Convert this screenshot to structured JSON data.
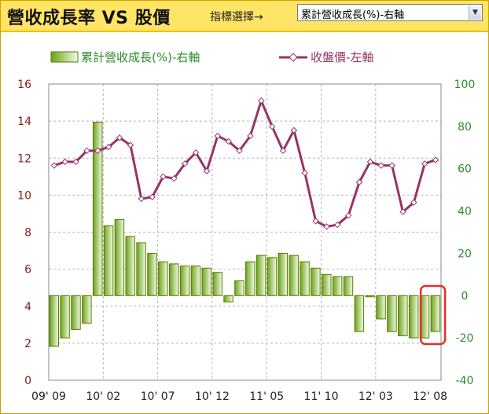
{
  "header": {
    "title": "營收成長率 VS 股價",
    "selector_label": "指標選擇→",
    "selected_option": "累計營收成長(%)-右軸"
  },
  "colors": {
    "header_bg": "#ffe566",
    "bar_stroke": "#5a7a00",
    "bar_fill_dark": "#6aa31a",
    "line": "#993366",
    "left_axis": "#8b1a1a",
    "right_axis": "#2e8b2e",
    "highlight": "#e03030"
  },
  "icons": {
    "dropdown": "chevron-down-icon"
  },
  "chart_data": {
    "type": "bar+line",
    "legend": [
      {
        "name": "累計營收成長(%)-右軸",
        "kind": "bar"
      },
      {
        "name": "收盤價-左軸",
        "kind": "line"
      }
    ],
    "x_tick_labels": [
      "09' 09",
      "10' 02",
      "10' 07",
      "10' 12",
      "11' 05",
      "11' 10",
      "12' 03",
      "12' 08"
    ],
    "left_axis": {
      "min": 0,
      "max": 16,
      "ticks": [
        0,
        2,
        4,
        6,
        8,
        10,
        12,
        14,
        16
      ]
    },
    "right_axis": {
      "min": -40,
      "max": 100,
      "ticks": [
        -40,
        -20,
        0,
        20,
        40,
        60,
        80,
        100
      ]
    },
    "grid": true,
    "series": [
      {
        "name": "累計營收成長(%)-右軸",
        "axis": "right",
        "type": "bar",
        "values": [
          -24,
          -20,
          -16,
          -13,
          82,
          33,
          36,
          28,
          25,
          20,
          16,
          15,
          14,
          14,
          13,
          11,
          -3,
          7,
          16,
          19,
          18,
          20,
          19,
          16,
          13,
          10,
          9,
          9,
          -17,
          0,
          -11,
          -17,
          -19,
          -20,
          -20,
          -17
        ]
      },
      {
        "name": "收盤價-左軸",
        "axis": "left",
        "type": "line",
        "values": [
          11.6,
          11.8,
          11.8,
          12.4,
          12.4,
          12.6,
          13.1,
          12.7,
          9.8,
          9.9,
          11.0,
          10.9,
          11.7,
          12.3,
          11.3,
          13.2,
          12.9,
          12.4,
          13.2,
          15.1,
          13.7,
          12.4,
          13.5,
          11.2,
          8.6,
          8.3,
          8.4,
          8.9,
          10.7,
          11.8,
          11.6,
          11.6,
          9.1,
          9.6,
          11.7,
          11.9
        ]
      }
    ],
    "highlight_last_bar": true
  }
}
